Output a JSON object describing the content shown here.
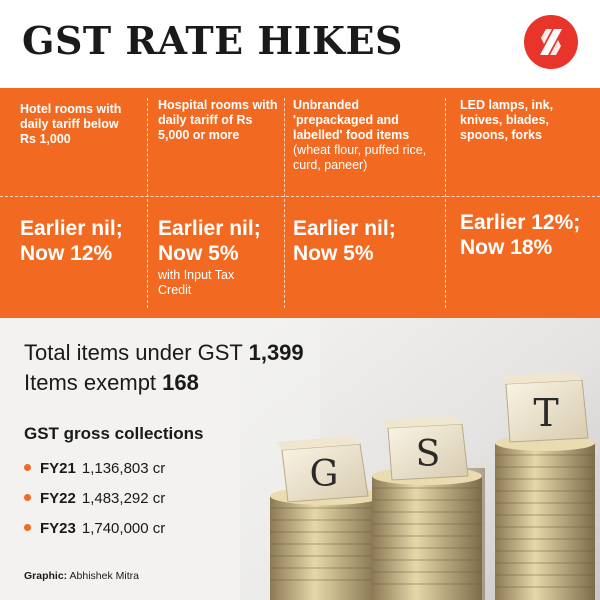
{
  "header": {
    "title": "GST RATE HIKES",
    "logo_icon": "indian-express-logo-icon",
    "accent_color": "#e8342a"
  },
  "categories": [
    {
      "item": "Hotel rooms with daily tariff below Rs 1,000",
      "detail": "",
      "rate_line1": "Earlier nil;",
      "rate_line2": "Now 12%",
      "note": ""
    },
    {
      "item": "Hospital rooms with daily tariff of Rs 5,000 or more",
      "detail": "",
      "rate_line1": "Earlier nil;",
      "rate_line2": "Now 5%",
      "note": "with Input Tax Credit"
    },
    {
      "item": "Unbranded 'prepackaged and labelled' food items",
      "detail": "(wheat flour, puffed rice, curd, paneer)",
      "rate_line1": "Earlier nil;",
      "rate_line2": "Now 5%",
      "note": ""
    },
    {
      "item": "LED lamps, ink, knives, blades, spoons, forks",
      "detail": "",
      "rate_line1": "Earlier 12%;",
      "rate_line2": "Now 18%",
      "note": ""
    }
  ],
  "stats": {
    "total_label": "Total items under GST",
    "total_value": "1,399",
    "exempt_label": "Items exempt",
    "exempt_value": "168"
  },
  "collections": {
    "heading": "GST gross collections",
    "rows": [
      {
        "year": "FY21",
        "amount": "1,136,803 cr"
      },
      {
        "year": "FY22",
        "amount": "1,483,292 cr"
      },
      {
        "year": "FY23",
        "amount": "1,740,000 cr"
      }
    ]
  },
  "photo": {
    "letters": [
      "G",
      "S",
      "T"
    ]
  },
  "credit": {
    "label": "Graphic:",
    "name": "Abhishek Mitra"
  },
  "colors": {
    "orange": "#f26a21",
    "background": "#f3f2f1",
    "text": "#1a1a1a"
  }
}
